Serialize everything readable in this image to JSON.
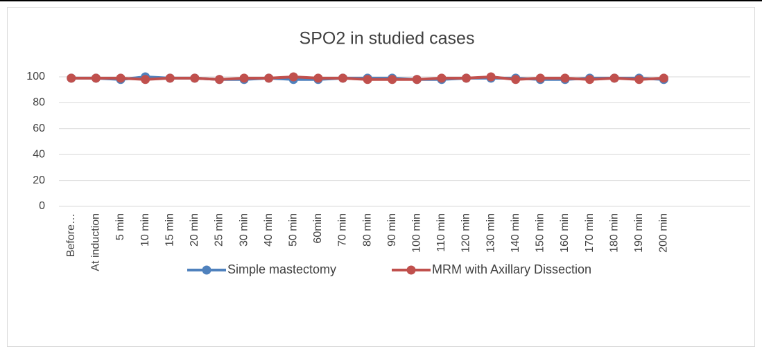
{
  "chart_data": {
    "type": "line",
    "title": "SPO2 in studied cases",
    "categories": [
      "Before…",
      "At induction",
      "5 min",
      "10 min",
      "15 min",
      "20 min",
      "25 min",
      "30 min",
      "40 min",
      "50 min",
      "60min",
      "70 min",
      "80 min",
      "90 min",
      "100 min",
      "110 min",
      "120 min",
      "130 min",
      "140 min",
      "150 min",
      "160 min",
      "170 min",
      "180 min",
      "190 min",
      "200 min",
      null,
      null,
      null
    ],
    "series": [
      {
        "name": "Simple mastectomy",
        "color": "#4f81bd",
        "values": [
          99,
          99,
          98,
          100,
          99,
          99,
          98,
          98,
          99,
          98,
          98,
          99,
          99,
          99,
          98,
          98,
          99,
          99,
          99,
          98,
          98,
          99,
          99,
          99,
          98,
          null,
          null,
          null
        ]
      },
      {
        "name": "MRM with Axillary Dissection",
        "color": "#c0504d",
        "values": [
          99,
          99,
          99,
          98,
          99,
          99,
          98,
          99,
          99,
          100,
          99,
          99,
          98,
          98,
          98,
          99,
          99,
          100,
          98,
          99,
          99,
          98,
          99,
          98,
          99,
          null,
          null,
          null
        ]
      }
    ],
    "ylim": [
      0,
      100
    ],
    "yticks": [
      0,
      20,
      40,
      60,
      80,
      100
    ],
    "grid": true,
    "legend": "bottom"
  }
}
